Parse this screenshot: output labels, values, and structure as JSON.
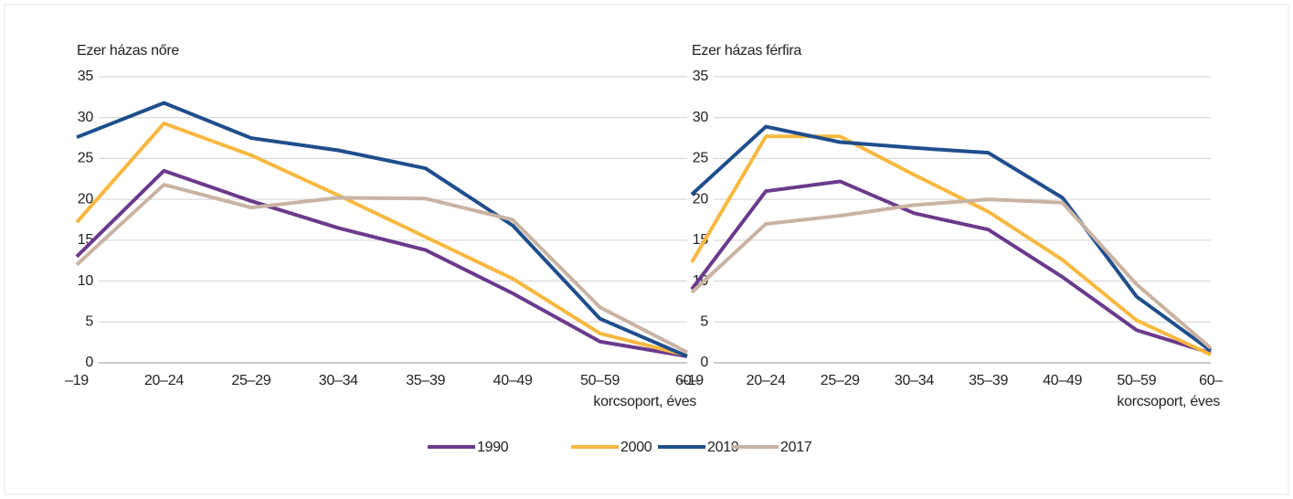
{
  "chart_data": [
    {
      "type": "line",
      "ylabel": "Ezer házas nőre",
      "xlabel": "korcsoport, éves",
      "categories": [
        "–19",
        "20–24",
        "25–29",
        "30–34",
        "35–39",
        "40–49",
        "50–59",
        "60–"
      ],
      "ylim": [
        0,
        35
      ],
      "yticks": [
        0,
        5,
        10,
        15,
        20,
        25,
        30,
        35
      ],
      "grid": true,
      "series": [
        {
          "name": "1990",
          "color": "#6b3a8c",
          "values": [
            13,
            23.5,
            19.8,
            16.5,
            13.8,
            8.5,
            2.6,
            0.8
          ]
        },
        {
          "name": "2000",
          "color": "#f7b83f",
          "values": [
            17.2,
            29.3,
            25.4,
            20.5,
            15.4,
            10.3,
            3.6,
            0.9
          ]
        },
        {
          "name": "2010",
          "color": "#1f4e8c",
          "values": [
            27.6,
            31.8,
            27.5,
            26,
            23.8,
            16.8,
            5.4,
            0.8
          ]
        },
        {
          "name": "2017",
          "color": "#c9b3a3",
          "values": [
            12,
            21.8,
            19,
            20.2,
            20.1,
            17.5,
            6.8,
            1.3
          ]
        }
      ]
    },
    {
      "type": "line",
      "ylabel": "Ezer házas férfira",
      "xlabel": "korcsoport, éves",
      "categories": [
        "–19",
        "20–24",
        "25–29",
        "30–34",
        "35–39",
        "40–49",
        "50–59",
        "60–"
      ],
      "ylim": [
        0,
        35
      ],
      "yticks": [
        0,
        5,
        10,
        15,
        20,
        25,
        30,
        35
      ],
      "grid": true,
      "series": [
        {
          "color": "#6b3a8c",
          "values": [
            9,
            21,
            22.2,
            18.3,
            16.3,
            10.5,
            4,
            1.2
          ]
        },
        {
          "color": "#f7b83f",
          "values": [
            12.3,
            27.7,
            27.7,
            23,
            18.5,
            12.6,
            5.2,
            1
          ]
        },
        {
          "color": "#1f4e8c",
          "values": [
            20.6,
            28.9,
            27,
            26.3,
            25.7,
            20.2,
            8.1,
            1.5
          ]
        },
        {
          "color": "#c9b3a3",
          "values": [
            8.6,
            17,
            18,
            19.3,
            20,
            19.6,
            9.6,
            1.8
          ]
        }
      ]
    }
  ]
}
